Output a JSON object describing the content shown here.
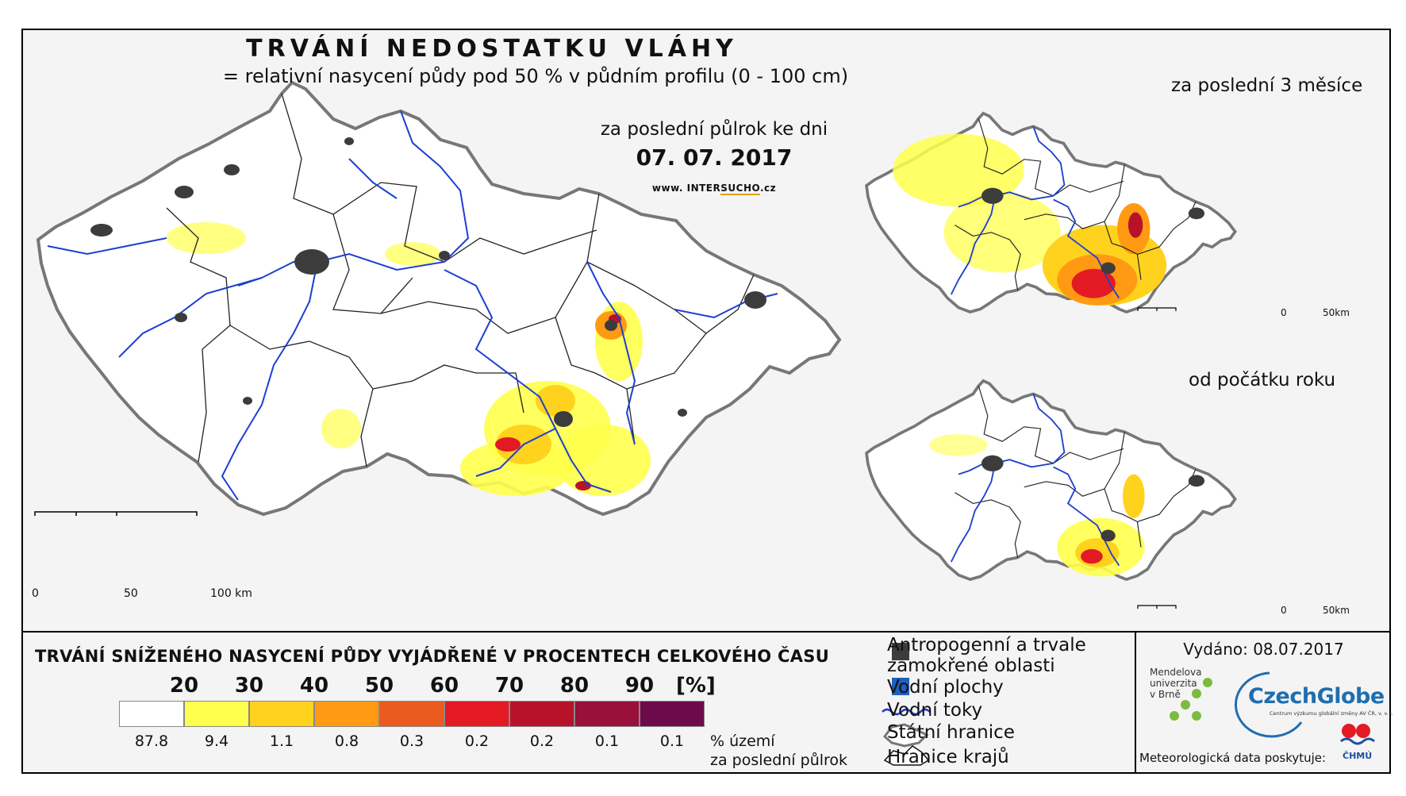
{
  "header": {
    "title": "TRVÁNÍ NEDOSTATKU VLÁHY",
    "subtitle": "= relativní nasycení půdy pod 50 % v půdním profilu (0 - 100 cm)",
    "period": "za poslední půlrok ke dni",
    "date": "07. 07. 2017",
    "website_prefix": "www. INTER",
    "website_highlight": "SUCHO",
    "website_suffix": ".cz"
  },
  "insets": {
    "three_months": "za poslední 3 měsíce",
    "since_start": "od počátku roku"
  },
  "scale": {
    "main_0": "0",
    "main_50": "50",
    "main_100": "100 km",
    "inset_0": "0",
    "inset_50": "50km"
  },
  "legend": {
    "title": "TRVÁNÍ SNÍŽENÉHO NASYCENÍ PŮDY VYJÁDŘENÉ V PROCENTECH CELKOVÉHO ČASU",
    "classes": [
      "20",
      "30",
      "40",
      "50",
      "60",
      "70",
      "80",
      "90"
    ],
    "unit": "[%]",
    "colors": [
      "#ffffff",
      "#ffff4d",
      "#ffd21e",
      "#ff9a12",
      "#eb5a1e",
      "#e31a24",
      "#b8122a",
      "#99103a",
      "#6d0a4c"
    ],
    "values": [
      "87.8",
      "9.4",
      "1.1",
      "0.8",
      "0.3",
      "0.2",
      "0.2",
      "0.1",
      "0.1"
    ],
    "note_line1": "% území",
    "note_line2": "za poslední půlrok"
  },
  "symbols": {
    "urban_line1": "Antropogenní a trvale",
    "urban_line2": "zamokřené oblasti",
    "water_bodies": "Vodní plochy",
    "rivers": "Vodní toky",
    "state_border": "Státní hranice",
    "region_border": "Hranice krajů",
    "colors": {
      "urban": "#3c3c3c",
      "water": "#1f5fbf",
      "river": "#1d3fd1"
    }
  },
  "footer": {
    "issued": "Vydáno: 08.07.2017",
    "mendel_line1": "Mendelova",
    "mendel_line2": "univerzita",
    "mendel_line3": "v Brně",
    "czechglobe": "CzechGlobe",
    "czechglobe_sub": "Centrum výzkumu globální změny AV ČR, v. v. i.",
    "meteo": "Meteorologická data poskytuje:",
    "chmu": "ČHMÚ"
  }
}
